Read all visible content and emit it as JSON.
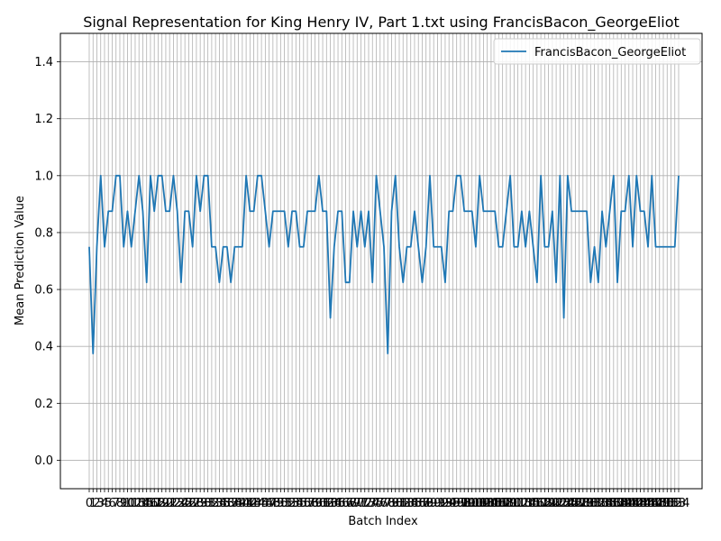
{
  "chart_data": {
    "type": "line",
    "title": "Signal Representation for King Henry IV, Part 1.txt using FrancisBacon_GeorgeEliot",
    "xlabel": "Batch Index",
    "ylabel": "Mean Prediction Value",
    "ylim": [
      -0.1,
      1.5
    ],
    "yticks": [
      "0.0",
      "0.2",
      "0.4",
      "0.6",
      "0.8",
      "1.0",
      "1.2",
      "1.4"
    ],
    "grid": true,
    "legend_position": "top-right",
    "series": [
      {
        "name": "FrancisBacon_GeorgeEliot",
        "color": "#1f77b4",
        "values": [
          0.75,
          0.375,
          0.75,
          1.0,
          0.75,
          0.875,
          0.875,
          1.0,
          1.0,
          0.75,
          0.875,
          0.75,
          0.875,
          1.0,
          0.875,
          0.625,
          1.0,
          0.875,
          1.0,
          1.0,
          0.875,
          0.875,
          1.0,
          0.875,
          0.625,
          0.875,
          0.875,
          0.75,
          1.0,
          0.875,
          1.0,
          1.0,
          0.75,
          0.75,
          0.625,
          0.75,
          0.75,
          0.625,
          0.75,
          0.75,
          0.75,
          1.0,
          0.875,
          0.875,
          1.0,
          1.0,
          0.875,
          0.75,
          0.875,
          0.875,
          0.875,
          0.875,
          0.75,
          0.875,
          0.875,
          0.75,
          0.75,
          0.875,
          0.875,
          0.875,
          1.0,
          0.875,
          0.875,
          0.5,
          0.75,
          0.875,
          0.875,
          0.625,
          0.625,
          0.875,
          0.75,
          0.875,
          0.75,
          0.875,
          0.625,
          1.0,
          0.875,
          0.75,
          0.375,
          0.875,
          1.0,
          0.75,
          0.625,
          0.75,
          0.75,
          0.875,
          0.75,
          0.625,
          0.75,
          1.0,
          0.75,
          0.75,
          0.75,
          0.625,
          0.875,
          0.875,
          1.0,
          1.0,
          0.875,
          0.875,
          0.875,
          0.75,
          1.0,
          0.875,
          0.875,
          0.875,
          0.875,
          0.75,
          0.75,
          0.875,
          1.0,
          0.75,
          0.75,
          0.875,
          0.75,
          0.875,
          0.75,
          0.625,
          1.0,
          0.75,
          0.75,
          0.875,
          0.625,
          1.0,
          0.5,
          1.0,
          0.875,
          0.875,
          0.875,
          0.875,
          0.875,
          0.625,
          0.75,
          0.625,
          0.875,
          0.75,
          0.875,
          1.0,
          0.625,
          0.875,
          0.875,
          1.0,
          0.75,
          1.0,
          0.875,
          0.875,
          0.75,
          1.0,
          0.75,
          0.75,
          0.75,
          0.75,
          0.75,
          0.75,
          1.0
        ]
      }
    ]
  }
}
